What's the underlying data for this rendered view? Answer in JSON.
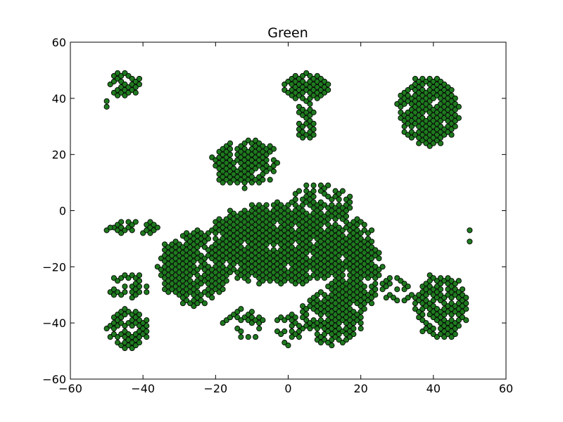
{
  "chart_data": {
    "type": "scatter",
    "title": "Green",
    "xlabel": "",
    "ylabel": "",
    "xlim": [
      -60,
      60
    ],
    "ylim": [
      -60,
      60
    ],
    "xticks": [
      "−60",
      "−40",
      "−20",
      "0",
      "20",
      "40",
      "60"
    ],
    "yticks": [
      "−60",
      "−40",
      "−20",
      "0",
      "20",
      "40",
      "60"
    ],
    "grid": false,
    "marker": {
      "shape": "circle",
      "fill": "#1f7a1f",
      "edge": "#000000"
    },
    "point_spacing": 1,
    "regions": [
      {
        "name": "top-left-cluster",
        "shape": "ellipse",
        "cx": -45,
        "cy": 45,
        "rx": 4.5,
        "ry": 5,
        "density": 0.85
      },
      {
        "name": "top-right-cluster",
        "shape": "ellipse",
        "cx": 38.5,
        "cy": 35.5,
        "rx": 9,
        "ry": 13,
        "density": 0.95
      },
      {
        "name": "upper-middle-arm",
        "shape": "ellipse",
        "cx": 5,
        "cy": 44,
        "rx": 7,
        "ry": 5,
        "density": 0.9
      },
      {
        "name": "upper-middle-stem",
        "shape": "ellipse",
        "cx": 5,
        "cy": 32,
        "rx": 3,
        "ry": 8,
        "density": 0.8
      },
      {
        "name": "upper-left-arm",
        "shape": "ellipse",
        "cx": -12,
        "cy": 17,
        "rx": 10,
        "ry": 9,
        "density": 0.85
      },
      {
        "name": "central-mass",
        "shape": "ellipse",
        "cx": -3,
        "cy": -12,
        "rx": 22,
        "ry": 15,
        "density": 0.95
      },
      {
        "name": "left-lobe",
        "shape": "ellipse",
        "cx": -26,
        "cy": -20,
        "rx": 10,
        "ry": 14,
        "density": 0.9
      },
      {
        "name": "right-lobe",
        "shape": "ellipse",
        "cx": 18,
        "cy": -20,
        "rx": 8,
        "ry": 18,
        "density": 0.9
      },
      {
        "name": "right-middle-band",
        "shape": "ellipse",
        "cx": 9,
        "cy": 2,
        "rx": 9,
        "ry": 8,
        "density": 0.8
      },
      {
        "name": "lower-middle-body",
        "shape": "ellipse",
        "cx": 12,
        "cy": -38,
        "rx": 9,
        "ry": 10,
        "density": 0.85
      },
      {
        "name": "far-left-arm",
        "shape": "ellipse",
        "cx": -42,
        "cy": -6,
        "rx": 7,
        "ry": 3,
        "density": 0.75
      },
      {
        "name": "bottom-left-cluster",
        "shape": "ellipse",
        "cx": -44,
        "cy": -42,
        "rx": 6,
        "ry": 8,
        "density": 0.8
      },
      {
        "name": "left-mid-cluster",
        "shape": "ellipse",
        "cx": -44,
        "cy": -27,
        "rx": 6,
        "ry": 5,
        "density": 0.75
      },
      {
        "name": "bottom-right-cluster",
        "shape": "ellipse",
        "cx": 42,
        "cy": -34,
        "rx": 8,
        "ry": 12,
        "density": 0.85
      },
      {
        "name": "right-bridge",
        "shape": "ellipse",
        "cx": 30,
        "cy": -28,
        "rx": 6,
        "ry": 5,
        "density": 0.6
      },
      {
        "name": "lower-left-tail",
        "shape": "ellipse",
        "cx": -12,
        "cy": -40,
        "rx": 6,
        "ry": 6,
        "density": 0.5
      },
      {
        "name": "lower-center-stem",
        "shape": "ellipse",
        "cx": 0,
        "cy": -42,
        "rx": 4,
        "ry": 6,
        "density": 0.6
      }
    ],
    "extra_points": [
      {
        "x": -50,
        "y": -7
      },
      {
        "x": -49,
        "y": -6
      },
      {
        "x": 50,
        "y": -7
      },
      {
        "x": 50,
        "y": -11
      },
      {
        "x": -50,
        "y": 37
      },
      {
        "x": -50,
        "y": 39
      }
    ]
  }
}
